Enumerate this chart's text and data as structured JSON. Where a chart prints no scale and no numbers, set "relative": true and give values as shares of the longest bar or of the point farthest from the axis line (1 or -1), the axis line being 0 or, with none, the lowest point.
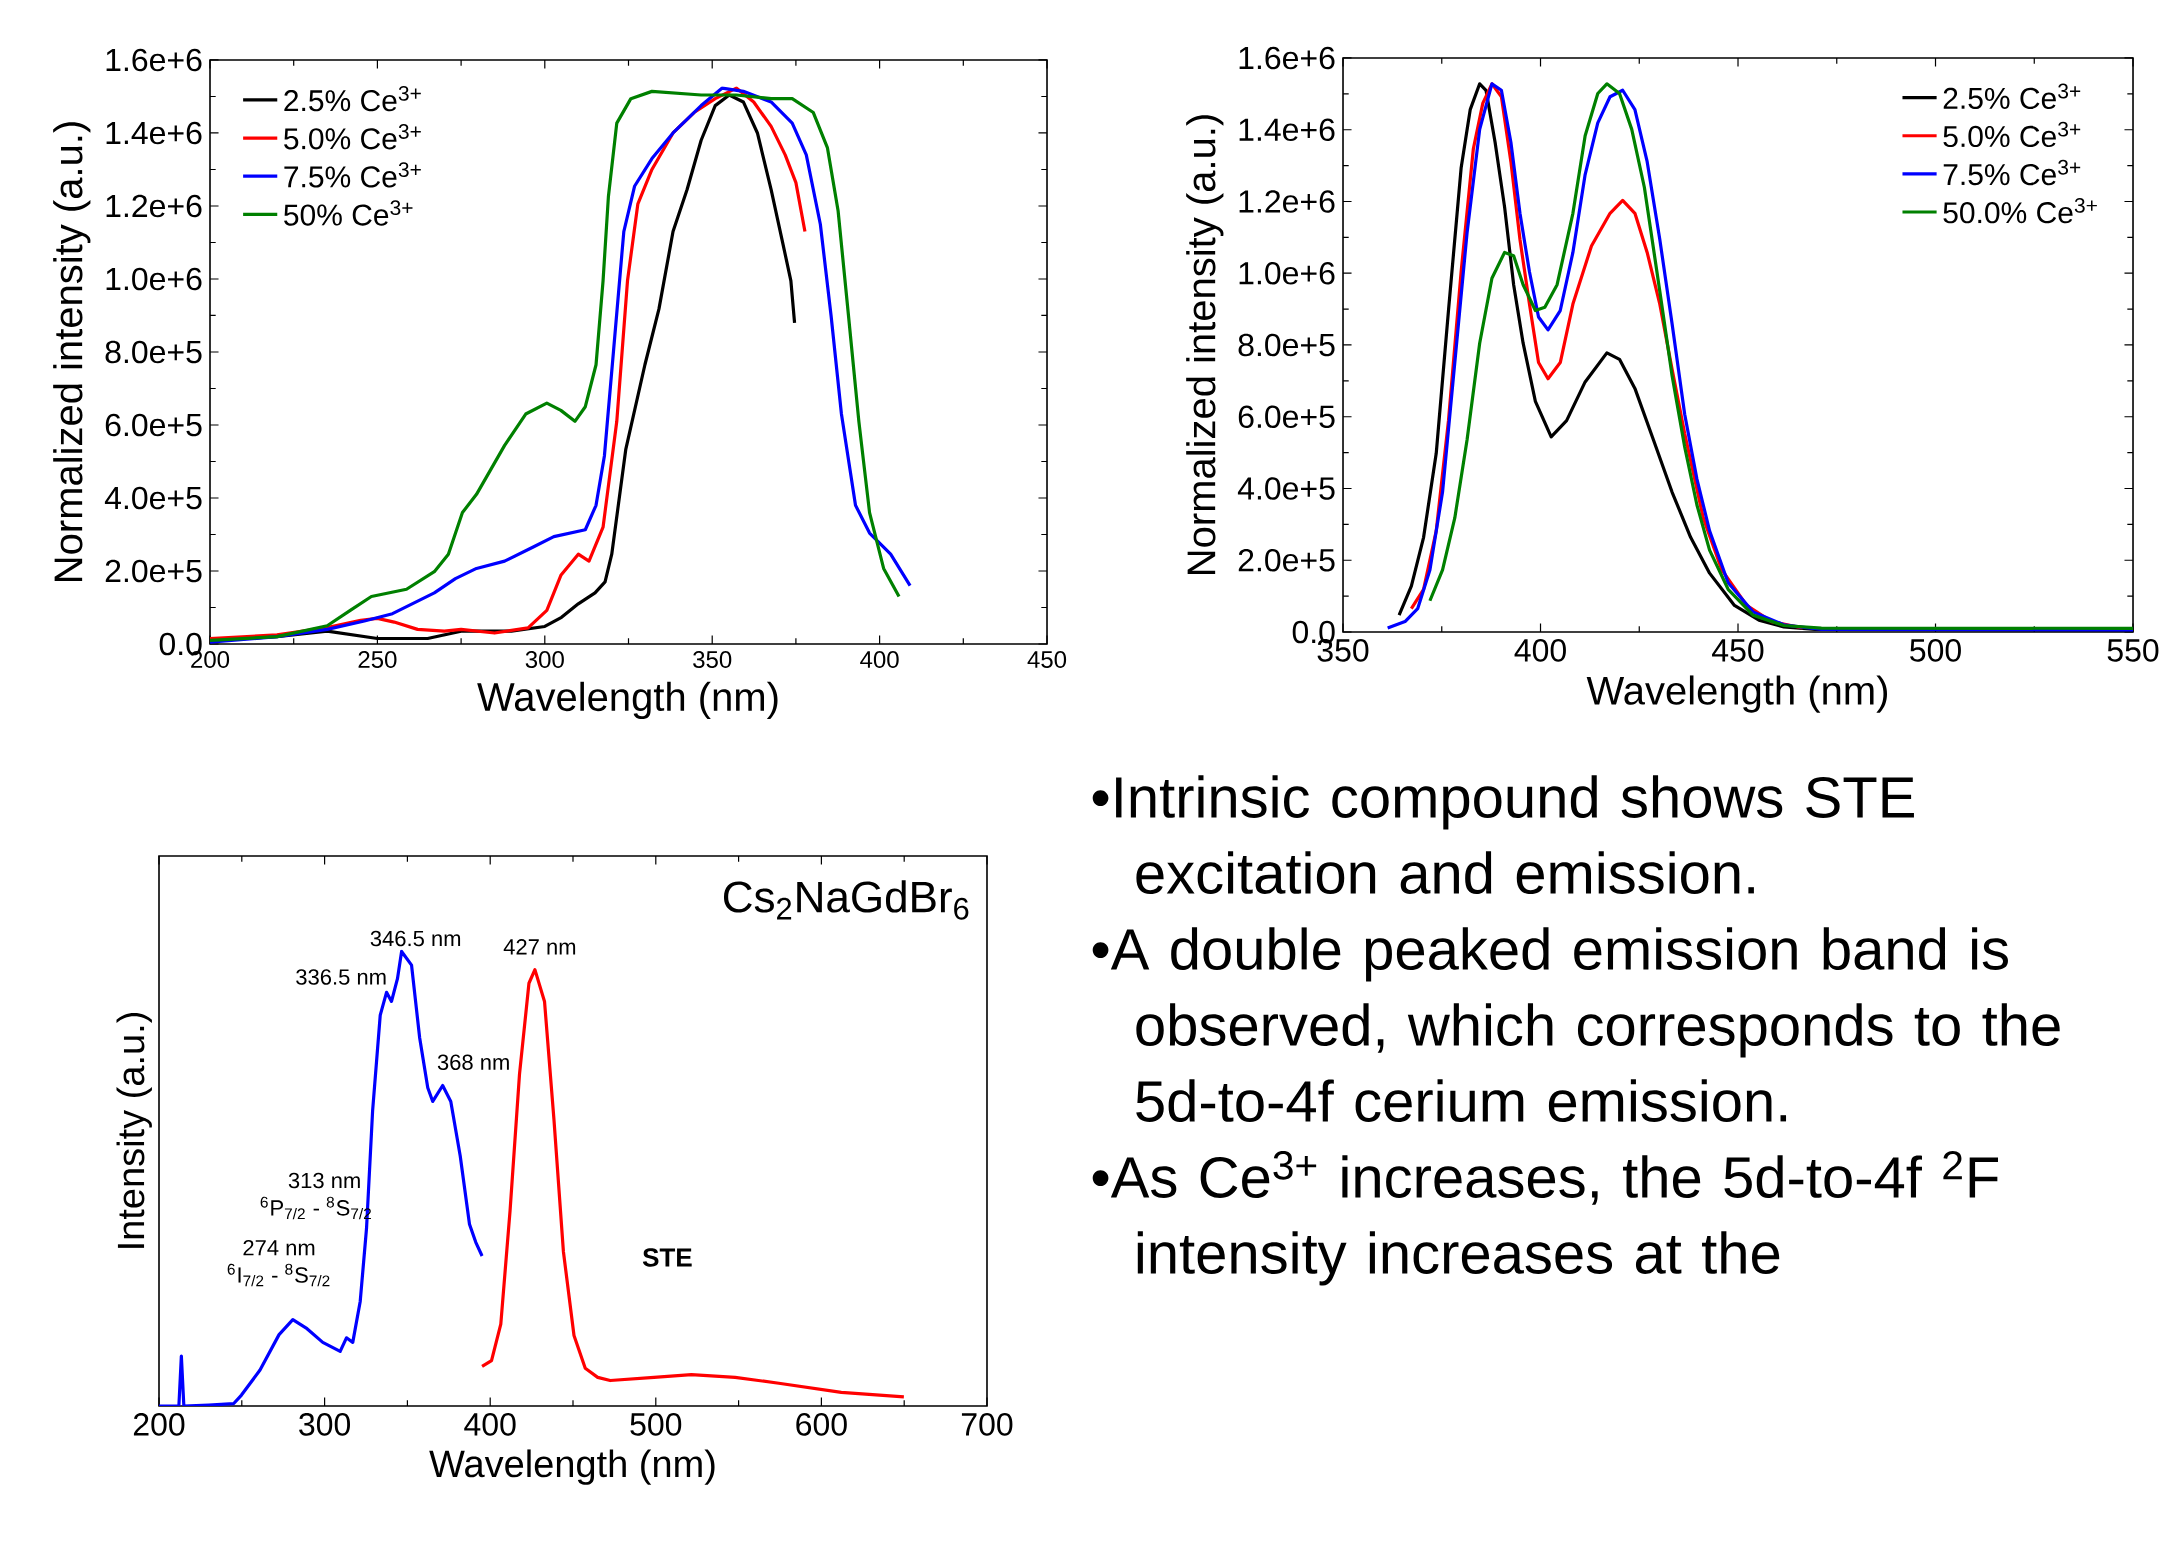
{
  "chart_data": [
    {
      "type": "line",
      "xlabel": "Wavelength (nm)",
      "ylabel": "Normalized intensity (a.u.)",
      "xlim": [
        200,
        450
      ],
      "ylim": [
        0,
        1600000
      ],
      "xticks": [
        200,
        250,
        300,
        350,
        400,
        450
      ],
      "yticks": [
        {
          "value": 0,
          "label": "0.0"
        },
        {
          "value": 200000,
          "label": "2.0e+5"
        },
        {
          "value": 400000,
          "label": "4.0e+5"
        },
        {
          "value": 600000,
          "label": "6.0e+5"
        },
        {
          "value": 800000,
          "label": "8.0e+5"
        },
        {
          "value": 1000000,
          "label": "1.0e+6"
        },
        {
          "value": 1200000,
          "label": "1.2e+6"
        },
        {
          "value": 1400000,
          "label": "1.4e+6"
        },
        {
          "value": 1600000,
          "label": "1.6e+6"
        }
      ],
      "legend": "top left",
      "series": [
        {
          "name": "2.5% Ce$^{3+}$",
          "color": "#000000",
          "x": [
            200,
            220,
            235,
            250,
            265,
            275,
            290,
            300,
            305,
            310,
            315,
            318,
            320,
            324.2,
            329.9,
            334.1,
            338.3,
            342.5,
            346.7,
            350.9,
            355.1,
            359.3,
            363.5,
            367.6,
            370.8,
            373.5,
            374.6
          ],
          "values": [
            10000,
            20000,
            35000,
            15000,
            15000,
            35000,
            35000,
            48000,
            73000,
            110000,
            140000,
            170000,
            246000,
            534000,
            765000,
            918000,
            1130000,
            1245000,
            1380000,
            1475000,
            1504000,
            1485000,
            1400000,
            1245000,
            1110000,
            995000,
            880000
          ]
        },
        {
          "name": "5.0% Ce$^{3+}$",
          "color": "#ff0000",
          "x": [
            200,
            220,
            235,
            245,
            250,
            255,
            262,
            270,
            275,
            285,
            295,
            300.6,
            304.8,
            310,
            313.2,
            317.4,
            321.5,
            324.7,
            327.8,
            332,
            338.3,
            344.6,
            350.9,
            357.2,
            362.4,
            367.6,
            371.8,
            375,
            377.7
          ],
          "values": [
            15000,
            25000,
            45000,
            65000,
            70000,
            60000,
            40000,
            35000,
            40000,
            30000,
            44000,
            92000,
            188000,
            246000,
            227000,
            320000,
            610000,
            995000,
            1206000,
            1300000,
            1400000,
            1456000,
            1494000,
            1523000,
            1485000,
            1418000,
            1340000,
            1264000,
            1130000
          ]
        },
        {
          "name": "7.5% Ce$^{3+}$",
          "color": "#0000ff",
          "x": [
            200,
            220,
            235,
            246.1,
            254.5,
            267,
            273.3,
            279.6,
            288,
            296.4,
            302.7,
            312.1,
            315.3,
            317.8,
            320.5,
            323.6,
            326.8,
            332,
            338.3,
            346.7,
            353,
            359.3,
            367.6,
            373.9,
            378.1,
            382.3,
            385.5,
            388.6,
            392.8,
            397,
            403.3,
            409.1
          ],
          "values": [
            5000,
            20000,
            40000,
            63000,
            83000,
            140000,
            179000,
            207000,
            227000,
            265000,
            294000,
            313000,
            380000,
            515000,
            800000,
            1130000,
            1254000,
            1330000,
            1400000,
            1475000,
            1523000,
            1514000,
            1485000,
            1427000,
            1340000,
            1150000,
            900000,
            630000,
            380000,
            304000,
            246000,
            160000
          ]
        },
        {
          "name": "50% Ce$^{3+}$",
          "color": "#008000",
          "x": [
            200,
            220,
            235,
            241.9,
            248.2,
            258.7,
            267,
            271.2,
            275.4,
            279.6,
            288,
            294.3,
            300.6,
            304.8,
            309,
            312.1,
            315.3,
            317.4,
            319,
            321.5,
            325.7,
            332,
            346.7,
            357.2,
            367.6,
            373.9,
            380.2,
            384.4,
            387.6,
            390.7,
            393.8,
            397,
            401.2,
            405.8
          ],
          "values": [
            10000,
            20000,
            50000,
            92000,
            130000,
            150000,
            198000,
            246000,
            360000,
            410000,
            544000,
            630000,
            660000,
            640000,
            610000,
            650000,
            765000,
            995000,
            1226000,
            1427000,
            1494000,
            1514000,
            1504000,
            1504000,
            1494000,
            1494000,
            1456000,
            1360000,
            1187000,
            900000,
            610000,
            360000,
            207000,
            130000
          ]
        }
      ]
    },
    {
      "type": "line",
      "xlabel": "Wavelength (nm)",
      "ylabel": "Normalized intensity (a.u.)",
      "xlim": [
        350,
        550
      ],
      "ylim": [
        0,
        1600000
      ],
      "xticks": [
        350,
        400,
        450,
        500,
        550
      ],
      "yticks": [
        {
          "value": 0,
          "label": "0.0"
        },
        {
          "value": 200000,
          "label": "2.0e+5"
        },
        {
          "value": 400000,
          "label": "4.0e+5"
        },
        {
          "value": 600000,
          "label": "6.0e+5"
        },
        {
          "value": 800000,
          "label": "8.0e+5"
        },
        {
          "value": 1000000,
          "label": "1.0e+6"
        },
        {
          "value": 1200000,
          "label": "1.2e+6"
        },
        {
          "value": 1400000,
          "label": "1.4e+6"
        },
        {
          "value": 1600000,
          "label": "1.6e+6"
        }
      ],
      "legend": "top right",
      "series": [
        {
          "name": "2.5% Ce$^{3+}$",
          "color": "#000000",
          "x": [
            364.2,
            367.3,
            370.4,
            373.6,
            376.7,
            379.9,
            382.2,
            384.6,
            386.2,
            388.5,
            390.9,
            393.2,
            395.6,
            398.7,
            402.7,
            406.6,
            411.3,
            416.8,
            420,
            423.9,
            428.6,
            433.3,
            438,
            442.8,
            449.1,
            455.3,
            461.6,
            469.5,
            550
          ],
          "values": [
            47000,
            128000,
            264000,
            498000,
            896000,
            1293000,
            1456000,
            1528000,
            1510000,
            1365000,
            1185000,
            968000,
            805000,
            643000,
            544000,
            589000,
            697000,
            778000,
            760000,
            679000,
            535000,
            390000,
            264000,
            164000,
            74000,
            33000,
            14000,
            7000,
            5000
          ]
        },
        {
          "name": "5.0% Ce$^{3+}$",
          "color": "#ff0000",
          "x": [
            367.3,
            370.4,
            373.6,
            376.7,
            379.9,
            383,
            385.4,
            387.7,
            390.1,
            392.5,
            394.8,
            397.2,
            399.5,
            401.9,
            405,
            408.2,
            412.9,
            417.6,
            420.8,
            423.9,
            427,
            430.2,
            433.3,
            436.5,
            441.2,
            445.9,
            452.2,
            458.5,
            466.4
          ],
          "values": [
            65000,
            119000,
            282000,
            589000,
            1004000,
            1347000,
            1474000,
            1528000,
            1492000,
            1311000,
            1094000,
            914000,
            751000,
            706000,
            751000,
            914000,
            1076000,
            1167000,
            1203000,
            1167000,
            1058000,
            914000,
            733000,
            553000,
            318000,
            173000,
            74000,
            29000,
            11000
          ]
        },
        {
          "name": "7.5% Ce$^{3+}$",
          "color": "#0000ff",
          "x": [
            361.3,
            365.7,
            368.9,
            372,
            375.2,
            378.3,
            381.4,
            384.6,
            387.7,
            390.1,
            392.5,
            394.8,
            397.2,
            399.5,
            401.9,
            405,
            408.2,
            411.3,
            414.5,
            417.6,
            420.8,
            423.9,
            427,
            430.2,
            433.3,
            436.5,
            439.6,
            442.8,
            447.5,
            453.8,
            461.6,
            471.1,
            550
          ],
          "values": [
            11000,
            29000,
            65000,
            173000,
            390000,
            751000,
            1112000,
            1401000,
            1528000,
            1510000,
            1365000,
            1167000,
            1004000,
            878000,
            842000,
            896000,
            1058000,
            1275000,
            1419000,
            1492000,
            1510000,
            1456000,
            1311000,
            1094000,
            860000,
            607000,
            426000,
            282000,
            137000,
            56000,
            20000,
            7000,
            6000
          ]
        },
        {
          "name": "50.0% Ce$^{3+}$",
          "color": "#008000",
          "x": [
            372,
            375.2,
            378.3,
            381.4,
            384.6,
            387.7,
            390.9,
            393.2,
            395.6,
            398.7,
            401.1,
            404.2,
            408.2,
            411.3,
            414.5,
            416.8,
            420,
            423.1,
            426.3,
            430.2,
            433.3,
            436.5,
            439.6,
            442.8,
            447.5,
            453.8,
            461.6,
            471.1,
            550
          ],
          "values": [
            87000,
            173000,
            318000,
            535000,
            805000,
            986000,
            1058000,
            1049000,
            968000,
            896000,
            905000,
            968000,
            1167000,
            1383000,
            1501000,
            1528000,
            1501000,
            1401000,
            1239000,
            950000,
            715000,
            516000,
            354000,
            228000,
            119000,
            47000,
            18000,
            11000,
            10000
          ]
        }
      ]
    },
    {
      "type": "line",
      "relative": true,
      "xlabel": "Wavelength (nm)",
      "ylabel": "Intensity (a.u.)",
      "xlim": [
        200,
        700
      ],
      "xticks": [
        200,
        300,
        400,
        500,
        600,
        700
      ],
      "annotations": [
        "Cs$_{2}$NaGdBr$_{6}$",
        "346.5 nm",
        "336.5 nm",
        "427 nm",
        "368 nm",
        "313 nm",
        "$^{6}$P$_{7/2}$ - $^{8}$S$_{7/2}$",
        "274 nm",
        "$^{6}$I$_{7/2}$ - $^{8}$S$_{7/2}$",
        "STE"
      ],
      "series": [
        {
          "color": "#0000ff",
          "x": [
            200,
            212,
            213.5,
            215,
            230,
            245,
            249.8,
            261,
            272.5,
            280.8,
            289.4,
            298.9,
            309.4,
            313.2,
            317,
            321.5,
            325.3,
            329,
            333.6,
            337.4,
            340.4,
            344,
            346.5,
            352.5,
            357.4,
            362.3,
            365.3,
            371.3,
            376.2,
            381.9,
            387.5,
            391.3,
            395.1
          ],
          "values": [
            0,
            0,
            0.11,
            0,
            0.002,
            0.005,
            0.024,
            0.079,
            0.157,
            0.19,
            0.17,
            0.14,
            0.12,
            0.15,
            0.14,
            0.23,
            0.39,
            0.65,
            0.86,
            0.91,
            0.89,
            0.94,
            1.0,
            0.97,
            0.81,
            0.7,
            0.67,
            0.705,
            0.67,
            0.55,
            0.4,
            0.36,
            0.33
          ]
        },
        {
          "color": "#ff0000",
          "x": [
            395.1,
            400.8,
            406.4,
            412,
            417.7,
            423.4,
            427,
            432.8,
            438.5,
            444.2,
            450.6,
            457.4,
            464.9,
            472.5,
            498.9,
            521.5,
            547.9,
            574.3,
            612,
            649.8
          ],
          "values": [
            0.087,
            0.1,
            0.18,
            0.43,
            0.73,
            0.93,
            0.96,
            0.89,
            0.63,
            0.34,
            0.155,
            0.083,
            0.063,
            0.056,
            0.063,
            0.069,
            0.063,
            0.05,
            0.03,
            0.02
          ]
        }
      ]
    },
    {
      "type": "other",
      "annotations": [
        "•Intrinsic compound shows STE excitation and emission.",
        "•A double peaked emission band is observed, which corresponds to the 5d-to-4f cerium emission.",
        "•As Ce$^{3+}$ increases, the 5d-to-4f $^{2}$F intensity increases at the"
      ]
    }
  ]
}
